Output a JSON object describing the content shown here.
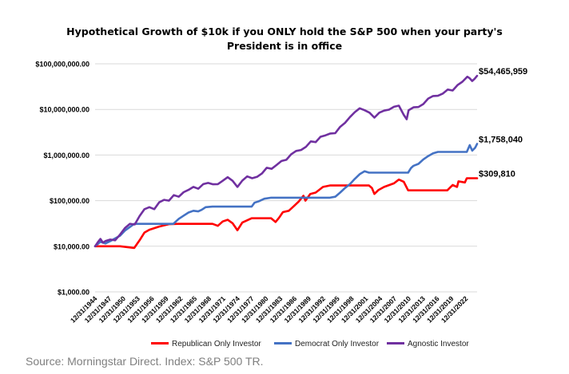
{
  "source": "Source: Morningstar Direct. Index: S&P 500 TR.",
  "chart_data": {
    "type": "line",
    "title_line1": "Hypothetical Growth of $10k if you ONLY hold the S&P 500 when your party's",
    "title_line2": "President is in office",
    "xlabel": "",
    "ylabel": "",
    "y_scale": "log",
    "ylim": [
      1000,
      100000000
    ],
    "y_ticks": [
      1000,
      10000,
      100000,
      1000000,
      10000000,
      100000000
    ],
    "y_tick_labels": [
      "$1,000.00",
      "$10,000.00",
      "$100,000.00",
      "$1,000,000.00",
      "$10,000,000.00",
      "$100,000,000.00"
    ],
    "x_tick_labels": [
      "12/31/1944",
      "12/31/1947",
      "12/31/1950",
      "12/31/1953",
      "12/31/1956",
      "12/31/1959",
      "12/31/1962",
      "12/31/1965",
      "12/31/1968",
      "12/31/1971",
      "12/31/1974",
      "12/31/1977",
      "12/31/1980",
      "12/31/1983",
      "12/31/1986",
      "12/31/1989",
      "12/31/1992",
      "12/31/1995",
      "12/31/1998",
      "12/31/2001",
      "12/31/2004",
      "12/31/2007",
      "12/31/2010",
      "12/31/2013",
      "12/31/2016",
      "12/31/2019",
      "12/31/2022"
    ],
    "grid": "horizontal",
    "legend_position": "bottom",
    "series": [
      {
        "name": "Republican Only Investor",
        "color": "#ff0000",
        "end_label": "$309,810",
        "x": [
          1944.9,
          1950,
          1952.9,
          1954,
          1955,
          1956,
          1958,
          1960,
          1962,
          1965,
          1968.9,
          1970,
          1971,
          1972,
          1973,
          1974,
          1975,
          1976.9,
          1980.9,
          1981.8,
          1982.5,
          1983.3,
          1984.5,
          1985.5,
          1986.5,
          1987.5,
          1987.9,
          1988.9,
          1990,
          1991.5,
          1992.9,
          2000.9,
          2001.5,
          2002,
          2002.8,
          2004,
          2006,
          2007,
          2008,
          2008.9,
          2016.9,
          2018,
          2018.9,
          2019.2,
          2020.5,
          2020.9,
          2023
        ],
        "y": [
          10000,
          10000,
          9200,
          13500,
          20000,
          23000,
          27000,
          30500,
          31000,
          31000,
          31000,
          28000,
          35000,
          38000,
          32000,
          22500,
          33000,
          41000,
          41000,
          34000,
          42000,
          56000,
          60000,
          75000,
          95000,
          128000,
          100000,
          140000,
          150000,
          200000,
          215000,
          215000,
          190000,
          140000,
          170000,
          200000,
          240000,
          290000,
          260000,
          168000,
          168000,
          220000,
          200000,
          265000,
          250000,
          310000,
          309810
        ]
      },
      {
        "name": "Democrat Only Investor",
        "color": "#4472c4",
        "end_label": "$1,758,040",
        "x": [
          1944.9,
          1946,
          1947,
          1948,
          1950,
          1951,
          1952.9,
          1960.9,
          1962,
          1963,
          1964,
          1965,
          1966,
          1966.7,
          1967.5,
          1968.9,
          1976.9,
          1977.5,
          1978.5,
          1979.5,
          1980.9,
          1992.9,
          1994,
          1995,
          1996,
          1997,
          1998,
          1999,
          2000,
          2000.9,
          2008.9,
          2009.5,
          2010,
          2011,
          2012,
          2013,
          2014,
          2015,
          2016.9,
          2020.9,
          2021.5,
          2022,
          2022.6,
          2023
        ],
        "y": [
          10000,
          12500,
          11500,
          13000,
          17000,
          22000,
          31000,
          31000,
          40000,
          47000,
          55000,
          60000,
          58000,
          63000,
          72000,
          74000,
          74000,
          90000,
          98000,
          110000,
          116000,
          116000,
          122000,
          150000,
          190000,
          230000,
          300000,
          380000,
          440000,
          410000,
          410000,
          520000,
          580000,
          640000,
          800000,
          950000,
          1090000,
          1170000,
          1170000,
          1170000,
          1650000,
          1250000,
          1450000,
          1758040
        ]
      },
      {
        "name": "Agnostic Investor",
        "color": "#7030a0",
        "end_label": "$54,465,959",
        "x": [
          1944.9,
          1945.5,
          1946,
          1946.5,
          1947,
          1948,
          1949,
          1950,
          1951,
          1952,
          1953,
          1954,
          1955,
          1956,
          1957,
          1958,
          1959,
          1960,
          1961,
          1962,
          1963,
          1964,
          1965,
          1966,
          1967,
          1968,
          1969,
          1970,
          1971,
          1972,
          1973,
          1974,
          1975,
          1976,
          1977,
          1978,
          1979,
          1980,
          1981,
          1982,
          1983,
          1984,
          1985,
          1986,
          1987,
          1988,
          1989,
          1990,
          1991,
          1992,
          1993,
          1994,
          1995,
          1996,
          1997,
          1998,
          1999,
          2000,
          2001,
          2002,
          2003,
          2004,
          2005,
          2006,
          2007,
          2008,
          2008.6,
          2009,
          2010,
          2011,
          2012,
          2013,
          2014,
          2015,
          2016,
          2017,
          2018,
          2019,
          2020,
          2021,
          2021.5,
          2022,
          2022.5,
          2023
        ],
        "y": [
          10000,
          12500,
          14500,
          12000,
          13000,
          14000,
          13500,
          18000,
          25000,
          31000,
          30000,
          46000,
          65000,
          72000,
          65000,
          92000,
          104000,
          100000,
          132000,
          122000,
          153000,
          172000,
          200000,
          182000,
          230000,
          244000,
          228000,
          230000,
          273000,
          326000,
          272000,
          200000,
          275000,
          340000,
          310000,
          332000,
          393000,
          525000,
          498000,
          605000,
          740000,
          787000,
          1040000,
          1230000,
          1290000,
          1510000,
          1990000,
          1920000,
          2510000,
          2700000,
          2970000,
          3010000,
          4140000,
          5090000,
          6790000,
          8730000,
          10570000,
          9610000,
          8470000,
          6600000,
          8490000,
          9420000,
          9880000,
          11440000,
          12070000,
          7600000,
          6100000,
          9600000,
          11100000,
          11300000,
          13100000,
          17300000,
          19700000,
          19900000,
          22300000,
          27200000,
          26000000,
          34200000,
          40500000,
          52100000,
          48000000,
          42000000,
          47000000,
          54465959
        ]
      }
    ]
  }
}
